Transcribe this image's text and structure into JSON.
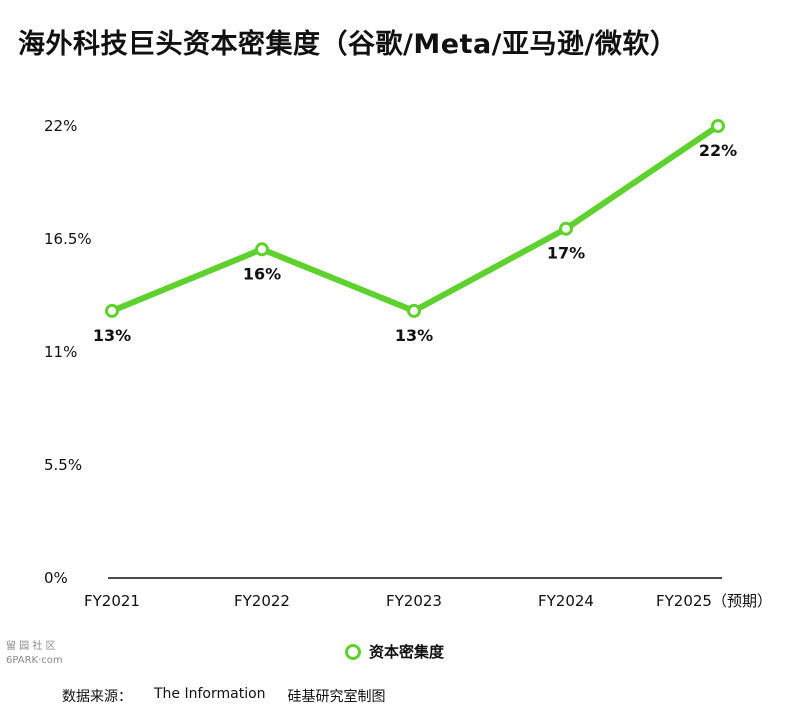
{
  "header": {
    "title": "海外科技巨头资本密集度（谷歌/Meta/亚马逊/微软）"
  },
  "chart_data": {
    "type": "line",
    "title": "海外科技巨头资本密集度（谷歌/Meta/亚马逊/微软）",
    "categories": [
      "FY2021",
      "FY2022",
      "FY2023",
      "FY2024",
      "FY2025（预期）"
    ],
    "series": [
      {
        "name": "资本密集度",
        "values": [
          13,
          16,
          13,
          17,
          22
        ],
        "labels": [
          "13%",
          "16%",
          "13%",
          "17%",
          "22%"
        ],
        "color": "#5fd12e"
      }
    ],
    "y_ticks": [
      "0%",
      "5.5%",
      "11%",
      "16.5%",
      "22%"
    ],
    "ylim": [
      0,
      22
    ],
    "ylabel": "",
    "xlabel": "",
    "grid": false,
    "legend_position": "bottom-center"
  },
  "legend": {
    "label": "资本密集度"
  },
  "watermark": {
    "line1": "留 园 社 区",
    "line2": "6PARK·com"
  },
  "footer": {
    "source_prefix": "数据来源：",
    "source_name": "The Information",
    "credit": "硅基研究室制图"
  }
}
